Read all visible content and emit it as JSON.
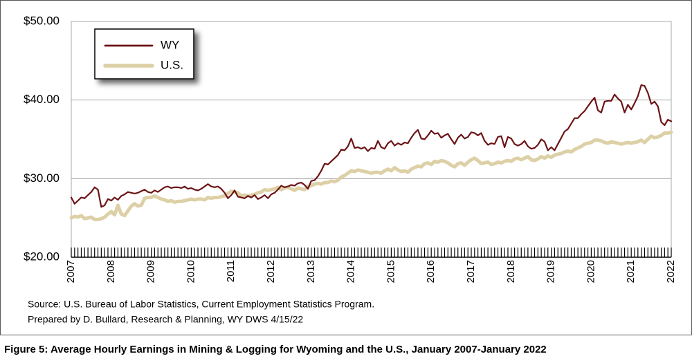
{
  "chart_data": {
    "type": "line",
    "caption": "Figure 5: Average Hourly Earnings in Mining & Logging for Wyoming and the U.S., January 2007-January 2022",
    "source": [
      "Source: U.S. Bureau of Labor Statistics, Current Employment Statistics Program.",
      "Prepared by D. Bullard, Research & Planning, WY DWS 4/15/22"
    ],
    "categories": [
      "2007",
      null,
      null,
      null,
      null,
      null,
      null,
      null,
      null,
      null,
      null,
      null,
      "2008",
      null,
      null,
      null,
      null,
      null,
      null,
      null,
      null,
      null,
      null,
      null,
      "2009",
      null,
      null,
      null,
      null,
      null,
      null,
      null,
      null,
      null,
      null,
      null,
      "2010",
      null,
      null,
      null,
      null,
      null,
      null,
      null,
      null,
      null,
      null,
      null,
      "2011",
      null,
      null,
      null,
      null,
      null,
      null,
      null,
      null,
      null,
      null,
      null,
      "2012",
      null,
      null,
      null,
      null,
      null,
      null,
      null,
      null,
      null,
      null,
      null,
      "2013",
      null,
      null,
      null,
      null,
      null,
      null,
      null,
      null,
      null,
      null,
      null,
      "2014",
      null,
      null,
      null,
      null,
      null,
      null,
      null,
      null,
      null,
      null,
      null,
      "2015",
      null,
      null,
      null,
      null,
      null,
      null,
      null,
      null,
      null,
      null,
      null,
      "2016",
      null,
      null,
      null,
      null,
      null,
      null,
      null,
      null,
      null,
      null,
      null,
      "2017",
      null,
      null,
      null,
      null,
      null,
      null,
      null,
      null,
      null,
      null,
      null,
      "2018",
      null,
      null,
      null,
      null,
      null,
      null,
      null,
      null,
      null,
      null,
      null,
      "2019",
      null,
      null,
      null,
      null,
      null,
      null,
      null,
      null,
      null,
      null,
      null,
      "2020",
      null,
      null,
      null,
      null,
      null,
      null,
      null,
      null,
      null,
      null,
      null,
      "2021",
      null,
      null,
      null,
      null,
      null,
      null,
      null,
      null,
      null,
      null,
      null,
      "2022"
    ],
    "series": [
      {
        "name": "WY",
        "color": "#6b1416",
        "values": [
          27.6,
          26.8,
          27.2,
          27.6,
          27.5,
          27.9,
          28.3,
          28.9,
          28.6,
          26.4,
          26.6,
          27.4,
          27.2,
          27.6,
          27.3,
          27.8,
          28.0,
          28.3,
          28.2,
          28.1,
          28.2,
          28.4,
          28.6,
          28.3,
          28.2,
          28.5,
          28.3,
          28.6,
          28.9,
          29.0,
          28.8,
          28.9,
          28.9,
          28.8,
          29.0,
          28.7,
          28.8,
          28.6,
          28.5,
          28.7,
          29.0,
          29.3,
          29.0,
          28.9,
          29.0,
          28.7,
          28.2,
          27.5,
          27.9,
          28.5,
          27.7,
          27.6,
          27.5,
          27.8,
          27.6,
          27.9,
          27.4,
          27.6,
          27.9,
          27.5,
          28.0,
          28.2,
          28.6,
          29.1,
          28.9,
          29.0,
          29.2,
          29.1,
          29.4,
          29.5,
          29.2,
          28.7,
          29.7,
          29.8,
          30.3,
          31.0,
          31.9,
          31.8,
          32.2,
          32.6,
          33.0,
          33.7,
          33.6,
          34.1,
          35.1,
          33.9,
          34.0,
          33.8,
          34.0,
          33.5,
          33.9,
          33.8,
          34.8,
          34.0,
          33.8,
          34.5,
          34.8,
          34.2,
          34.5,
          34.3,
          34.6,
          34.5,
          35.2,
          35.8,
          36.2,
          35.1,
          35.0,
          35.5,
          36.1,
          35.7,
          35.8,
          35.2,
          35.5,
          35.7,
          35.0,
          34.4,
          35.2,
          35.6,
          35.1,
          35.3,
          35.9,
          35.8,
          35.5,
          35.8,
          34.8,
          34.3,
          34.5,
          34.4,
          35.3,
          35.4,
          34.0,
          35.3,
          35.1,
          34.4,
          34.2,
          34.4,
          34.8,
          34.1,
          33.8,
          33.9,
          34.3,
          35.0,
          34.7,
          33.6,
          34.0,
          33.6,
          34.4,
          35.2,
          36.0,
          36.3,
          37.0,
          37.7,
          37.7,
          38.2,
          38.6,
          39.2,
          39.8,
          40.3,
          38.7,
          38.4,
          39.8,
          39.9,
          39.9,
          40.7,
          40.2,
          39.8,
          38.4,
          39.4,
          38.8,
          39.6,
          40.5,
          41.9,
          41.8,
          40.9,
          39.5,
          39.8,
          39.2,
          37.2,
          36.8,
          37.5,
          37.3
        ]
      },
      {
        "name": "U.S.",
        "color": "#ddd0a6",
        "values": [
          25.0,
          25.2,
          25.1,
          25.3,
          24.9,
          25.0,
          25.1,
          24.8,
          24.8,
          24.9,
          25.1,
          25.5,
          25.8,
          25.4,
          26.6,
          25.5,
          25.3,
          25.9,
          26.5,
          26.8,
          26.5,
          26.6,
          27.5,
          27.6,
          27.6,
          27.8,
          27.6,
          27.4,
          27.3,
          27.1,
          27.2,
          27.0,
          27.1,
          27.1,
          27.2,
          27.3,
          27.4,
          27.3,
          27.4,
          27.4,
          27.3,
          27.6,
          27.5,
          27.6,
          27.6,
          27.7,
          27.8,
          28.1,
          28.4,
          28.3,
          28.2,
          27.8,
          27.9,
          27.8,
          27.9,
          28.0,
          28.2,
          28.3,
          28.6,
          28.5,
          28.6,
          28.7,
          28.9,
          28.6,
          28.8,
          28.9,
          28.7,
          28.5,
          28.8,
          28.7,
          28.6,
          29.0,
          29.1,
          29.3,
          29.4,
          29.3,
          29.5,
          29.5,
          29.7,
          29.6,
          29.8,
          30.2,
          30.4,
          30.7,
          31.0,
          30.9,
          31.1,
          31.0,
          30.9,
          30.8,
          30.7,
          30.8,
          30.8,
          30.7,
          31.0,
          31.2,
          31.0,
          31.4,
          31.1,
          30.9,
          31.0,
          30.8,
          31.2,
          31.4,
          31.6,
          31.5,
          31.9,
          32.0,
          31.8,
          32.2,
          32.1,
          32.3,
          32.2,
          32.0,
          31.7,
          31.5,
          31.9,
          32.0,
          31.7,
          32.1,
          32.4,
          32.6,
          32.3,
          31.9,
          32.0,
          32.1,
          31.8,
          31.9,
          32.1,
          32.0,
          32.2,
          32.3,
          32.2,
          32.5,
          32.6,
          32.4,
          32.6,
          32.8,
          32.4,
          32.3,
          32.5,
          32.8,
          32.6,
          32.9,
          32.7,
          33.0,
          33.1,
          33.2,
          33.4,
          33.5,
          33.4,
          33.7,
          33.9,
          34.1,
          34.4,
          34.5,
          34.6,
          34.9,
          34.9,
          34.8,
          34.6,
          34.5,
          34.7,
          34.6,
          34.5,
          34.4,
          34.5,
          34.6,
          34.5,
          34.6,
          34.7,
          34.9,
          34.6,
          35.0,
          35.4,
          35.2,
          35.3,
          35.5,
          35.8,
          35.8,
          35.9
        ]
      }
    ],
    "ylim": [
      20,
      50
    ],
    "yticks": [
      {
        "value": 20,
        "label": "$20.00"
      },
      {
        "value": 30,
        "label": "$30.00"
      },
      {
        "value": 40,
        "label": "$40.00"
      },
      {
        "value": 50,
        "label": "$50.00"
      }
    ],
    "grid": true,
    "legend": "upper left"
  }
}
